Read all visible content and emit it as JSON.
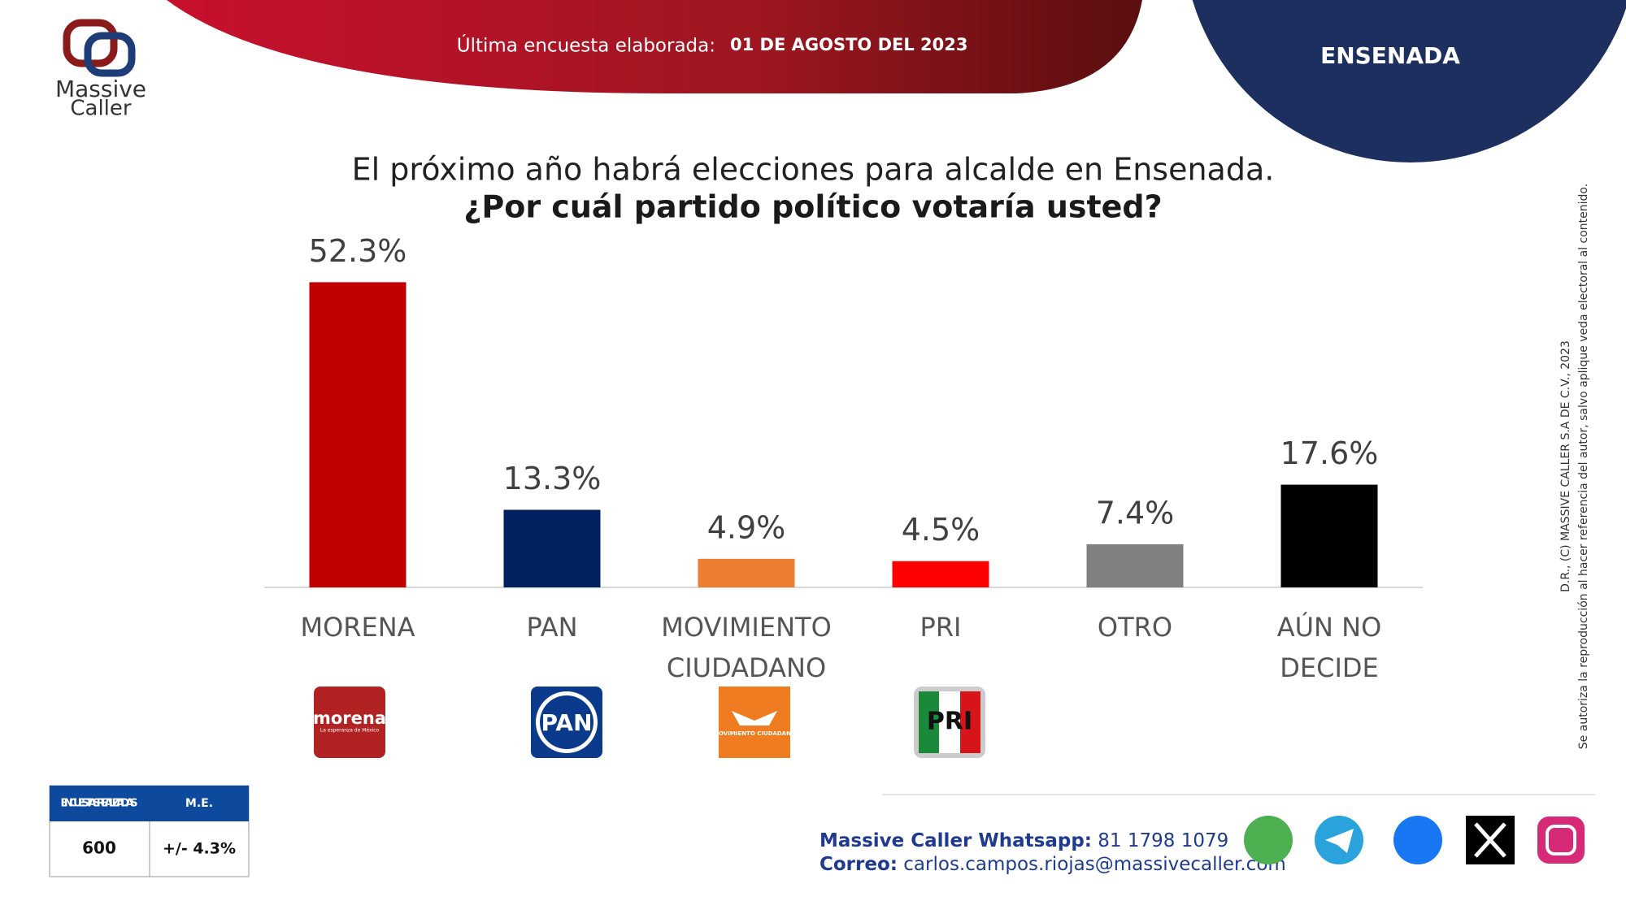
{
  "brand": {
    "name1": "Massive",
    "name2": "Caller"
  },
  "header": {
    "label": "Última encuesta elaborada:",
    "date": "01 DE AGOSTO DEL 2023",
    "region": "ENSENADA"
  },
  "chart_data": {
    "type": "bar",
    "title": "El próximo año habrá elecciones para alcalde en Ensenada.",
    "subtitle": "¿Por cuál partido político votaría usted?",
    "categories": [
      "MORENA",
      "PAN",
      "MOVIMIENTO CIUDADANO",
      "PRI",
      "OTRO",
      "AÚN NO DECIDE"
    ],
    "values": [
      52.3,
      13.3,
      4.9,
      4.5,
      7.4,
      17.6
    ],
    "value_labels": [
      "52.3%",
      "13.3%",
      "4.9%",
      "4.5%",
      "7.4%",
      "17.6%"
    ],
    "colors": [
      "#c00000",
      "#002060",
      "#ed7d31",
      "#ff0000",
      "#808080",
      "#000000"
    ],
    "ylim": [
      0,
      55
    ]
  },
  "logos": [
    {
      "text": "morena",
      "sub": "La esperanza de México"
    },
    {
      "text": "PAN"
    },
    {
      "text": "MOVIMIENTO CIUDADANO"
    },
    {
      "text": "PRI"
    }
  ],
  "survey_table": {
    "headers": [
      "ENCUESTAS REALIZADAS",
      "M.E."
    ],
    "values": [
      "600",
      "+/- 4.3%"
    ]
  },
  "footer": {
    "whatsapp_label": "Massive Caller Whatsapp:",
    "whatsapp": "81 1798 1079",
    "email_label": "Correo:",
    "email": "carlos.campos.riojas@massivecaller.com"
  },
  "copyright": {
    "line1": "D.R., (C) MASSIVE CALLER S.A DE C.V., 2023",
    "line2": "Se autoriza la reproducción al hacer referencia del autor, salvo aplique veda electoral al contenido."
  }
}
